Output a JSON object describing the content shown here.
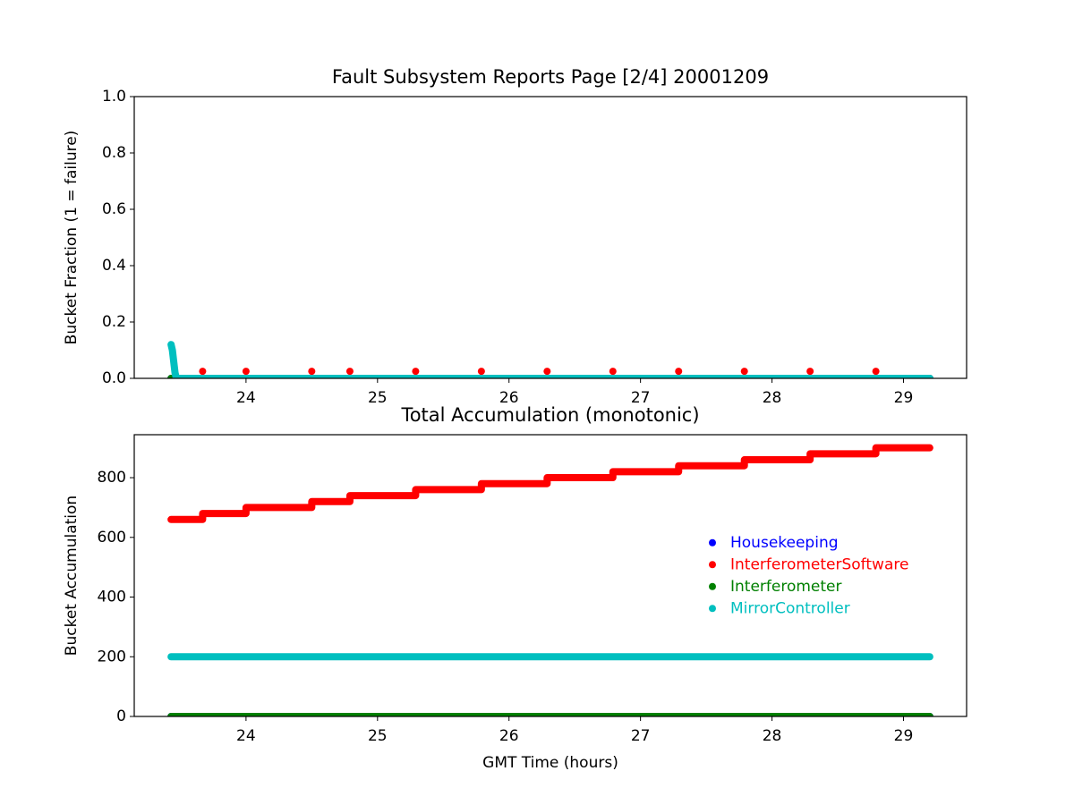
{
  "chart_data": [
    {
      "type": "scatter",
      "title": "Fault Subsystem Reports Page [2/4] 20001209",
      "ylabel": "Bucket Fraction (1 = failure)",
      "xlim": [
        23.15,
        29.48
      ],
      "ylim": [
        0,
        1
      ],
      "xticks": [
        24,
        25,
        26,
        27,
        28,
        29
      ],
      "yticks": [
        {
          "value": 0,
          "label": "0.0"
        },
        {
          "value": 0.2,
          "label": "0.2"
        },
        {
          "value": 0.4,
          "label": "0.4"
        },
        {
          "value": 0.6,
          "label": "0.6"
        },
        {
          "value": 0.8,
          "label": "0.8"
        },
        {
          "value": 1,
          "label": "1.0"
        }
      ],
      "series": [
        {
          "name": "Housekeeping",
          "color": "#0000ff",
          "line": true,
          "x": [
            23.43,
            29.2
          ],
          "values": [
            0,
            0
          ]
        },
        {
          "name": "InterferometerSoftware",
          "color": "#ff0000",
          "line": false,
          "x": [
            23.67,
            24.0,
            24.5,
            24.79,
            25.29,
            25.79,
            26.29,
            26.79,
            27.29,
            27.79,
            28.29,
            28.79
          ],
          "values": [
            0.025,
            0.025,
            0.025,
            0.025,
            0.025,
            0.025,
            0.025,
            0.025,
            0.025,
            0.025,
            0.025,
            0.025
          ]
        },
        {
          "name": "Interferometer",
          "color": "#008000",
          "line": true,
          "x": [
            23.43,
            29.2
          ],
          "values": [
            0,
            0
          ]
        },
        {
          "name": "MirrorController",
          "color": "#00bfbf",
          "line": true,
          "x": [
            23.43,
            23.44,
            23.45,
            23.46,
            23.47,
            29.2
          ],
          "values": [
            0.12,
            0.1,
            0.06,
            0.02,
            0,
            0
          ]
        }
      ]
    },
    {
      "type": "scatter",
      "title": "Total Accumulation (monotonic)",
      "ylabel": "Bucket Accumulation",
      "xlabel": "GMT Time (hours)",
      "xlim": [
        23.15,
        29.48
      ],
      "ylim": [
        0,
        944
      ],
      "xticks": [
        24,
        25,
        26,
        27,
        28,
        29
      ],
      "yticks": [
        0,
        200,
        400,
        600,
        800
      ],
      "legend": "center right",
      "series": [
        {
          "name": "Housekeeping",
          "color": "#0000ff",
          "line": true,
          "x": [
            23.43,
            29.2
          ],
          "values": [
            0,
            0
          ]
        },
        {
          "name": "InterferometerSoftware",
          "color": "#ff0000",
          "line": true,
          "x": [
            23.43,
            23.67,
            23.67,
            24.0,
            24.0,
            24.5,
            24.5,
            24.79,
            24.79,
            25.29,
            25.29,
            25.79,
            25.79,
            26.29,
            26.29,
            26.79,
            26.79,
            27.29,
            27.29,
            27.79,
            27.79,
            28.29,
            28.29,
            28.79,
            28.79,
            29.2
          ],
          "values": [
            660,
            660,
            680,
            680,
            700,
            700,
            720,
            720,
            740,
            740,
            760,
            760,
            780,
            780,
            800,
            800,
            820,
            820,
            840,
            840,
            860,
            860,
            880,
            880,
            900,
            900
          ]
        },
        {
          "name": "Interferometer",
          "color": "#008000",
          "line": true,
          "x": [
            23.43,
            29.2
          ],
          "values": [
            0,
            0
          ]
        },
        {
          "name": "MirrorController",
          "color": "#00bfbf",
          "line": true,
          "x": [
            23.43,
            29.2
          ],
          "values": [
            200,
            200
          ]
        }
      ]
    }
  ]
}
